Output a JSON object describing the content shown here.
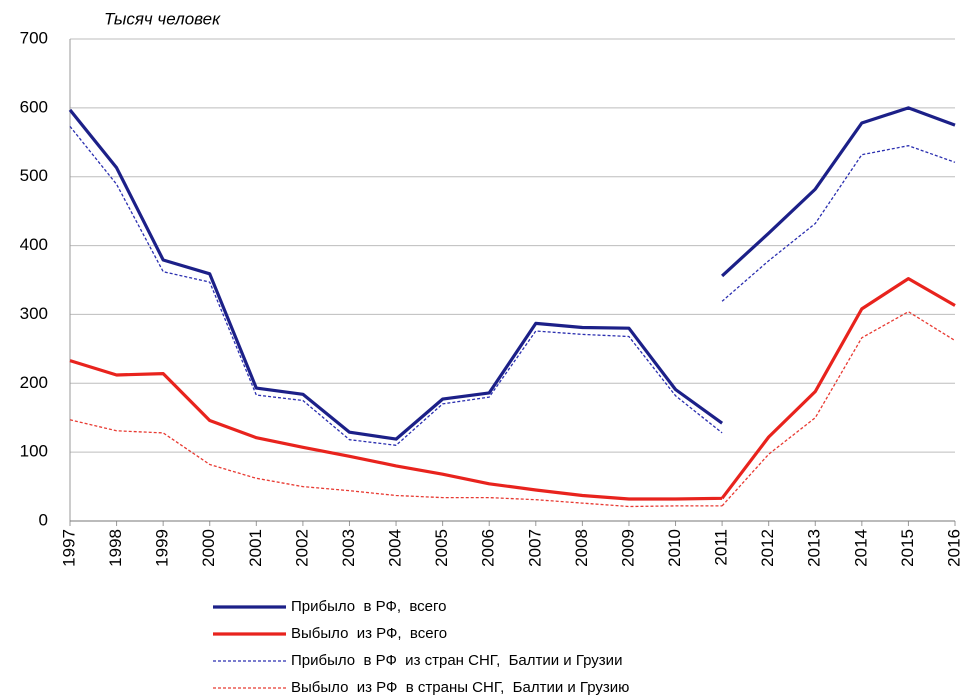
{
  "chart_data": {
    "type": "line",
    "title": "Тысяч человек",
    "x": [
      1997,
      1998,
      1999,
      2000,
      2001,
      2002,
      2003,
      2004,
      2005,
      2006,
      2007,
      2008,
      2009,
      2010,
      2011,
      2011,
      2011,
      2012,
      2013,
      2014,
      2015,
      2016
    ],
    "xlim": [
      1997,
      2016
    ],
    "xticks": [
      1997,
      1998,
      1999,
      2000,
      2001,
      2002,
      2003,
      2004,
      2005,
      2006,
      2007,
      2008,
      2009,
      2010,
      2011,
      2012,
      2013,
      2014,
      2015,
      2016
    ],
    "ylim": [
      0,
      700
    ],
    "yticks": [
      0,
      100,
      200,
      300,
      400,
      500,
      600,
      700
    ],
    "grid": true,
    "series": [
      {
        "name": "Прибыло  в РФ,  всего",
        "color": "#1c2088",
        "style": "solid",
        "values": [
          597,
          513,
          379,
          359,
          193,
          184,
          129,
          119,
          177,
          186,
          287,
          281,
          280,
          191,
          142,
          null,
          356,
          418,
          482,
          578,
          600,
          575
        ]
      },
      {
        "name": "Выбыло  из РФ,  всего",
        "color": "#e8231d",
        "style": "solid",
        "values": [
          233,
          212,
          214,
          146,
          121,
          107,
          94,
          80,
          68,
          54,
          45,
          37,
          32,
          32,
          33,
          null,
          33,
          122,
          188,
          308,
          352,
          313
        ]
      },
      {
        "name": "Прибыло  в РФ  из стран СНГ,  Балтии и Грузии",
        "color": "#2b2fb0",
        "style": "dashed",
        "values": [
          573,
          489,
          362,
          347,
          183,
          175,
          118,
          110,
          170,
          180,
          276,
          271,
          268,
          182,
          128,
          null,
          319,
          378,
          432,
          532,
          545,
          521
        ]
      },
      {
        "name": "Выбыло  из РФ  в страны СНГ,  Балтии и Грузию",
        "color": "#e83a32",
        "style": "dashed",
        "values": [
          147,
          131,
          128,
          82,
          62,
          50,
          44,
          37,
          34,
          34,
          31,
          26,
          21,
          22,
          22,
          null,
          22,
          97,
          150,
          266,
          304,
          262
        ]
      }
    ]
  }
}
